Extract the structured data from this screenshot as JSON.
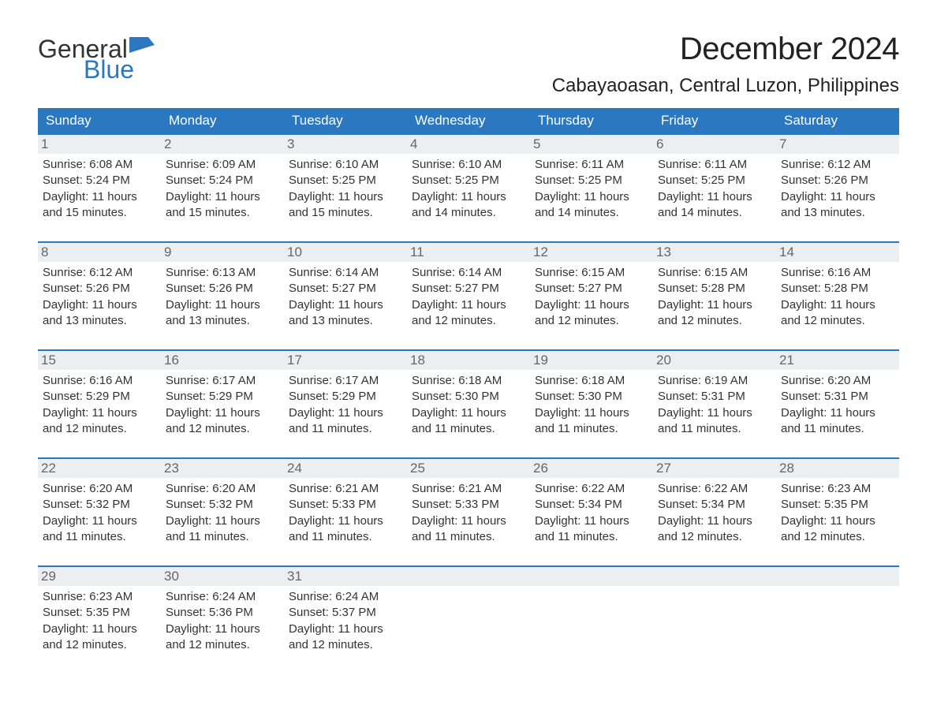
{
  "brand": {
    "word1": "General",
    "word2": "Blue",
    "flag_color": "#2b77c0",
    "text_gray": "#333333"
  },
  "title": "December 2024",
  "location": "Cabayaoasan, Central Luzon, Philippines",
  "colors": {
    "header_bg": "#2b77c0",
    "header_text": "#ffffff",
    "row_border": "#2b77c0",
    "daynum_bg": "#eceff1",
    "daynum_text": "#666666",
    "body_text": "#333333",
    "background": "#ffffff"
  },
  "fonts": {
    "title_size": 40,
    "location_size": 24,
    "dow_size": 17,
    "daynum_size": 17,
    "body_size": 15
  },
  "days_of_week": [
    "Sunday",
    "Monday",
    "Tuesday",
    "Wednesday",
    "Thursday",
    "Friday",
    "Saturday"
  ],
  "weeks": [
    [
      {
        "n": "1",
        "sr": "Sunrise: 6:08 AM",
        "ss": "Sunset: 5:24 PM",
        "d1": "Daylight: 11 hours",
        "d2": "and 15 minutes."
      },
      {
        "n": "2",
        "sr": "Sunrise: 6:09 AM",
        "ss": "Sunset: 5:24 PM",
        "d1": "Daylight: 11 hours",
        "d2": "and 15 minutes."
      },
      {
        "n": "3",
        "sr": "Sunrise: 6:10 AM",
        "ss": "Sunset: 5:25 PM",
        "d1": "Daylight: 11 hours",
        "d2": "and 15 minutes."
      },
      {
        "n": "4",
        "sr": "Sunrise: 6:10 AM",
        "ss": "Sunset: 5:25 PM",
        "d1": "Daylight: 11 hours",
        "d2": "and 14 minutes."
      },
      {
        "n": "5",
        "sr": "Sunrise: 6:11 AM",
        "ss": "Sunset: 5:25 PM",
        "d1": "Daylight: 11 hours",
        "d2": "and 14 minutes."
      },
      {
        "n": "6",
        "sr": "Sunrise: 6:11 AM",
        "ss": "Sunset: 5:25 PM",
        "d1": "Daylight: 11 hours",
        "d2": "and 14 minutes."
      },
      {
        "n": "7",
        "sr": "Sunrise: 6:12 AM",
        "ss": "Sunset: 5:26 PM",
        "d1": "Daylight: 11 hours",
        "d2": "and 13 minutes."
      }
    ],
    [
      {
        "n": "8",
        "sr": "Sunrise: 6:12 AM",
        "ss": "Sunset: 5:26 PM",
        "d1": "Daylight: 11 hours",
        "d2": "and 13 minutes."
      },
      {
        "n": "9",
        "sr": "Sunrise: 6:13 AM",
        "ss": "Sunset: 5:26 PM",
        "d1": "Daylight: 11 hours",
        "d2": "and 13 minutes."
      },
      {
        "n": "10",
        "sr": "Sunrise: 6:14 AM",
        "ss": "Sunset: 5:27 PM",
        "d1": "Daylight: 11 hours",
        "d2": "and 13 minutes."
      },
      {
        "n": "11",
        "sr": "Sunrise: 6:14 AM",
        "ss": "Sunset: 5:27 PM",
        "d1": "Daylight: 11 hours",
        "d2": "and 12 minutes."
      },
      {
        "n": "12",
        "sr": "Sunrise: 6:15 AM",
        "ss": "Sunset: 5:27 PM",
        "d1": "Daylight: 11 hours",
        "d2": "and 12 minutes."
      },
      {
        "n": "13",
        "sr": "Sunrise: 6:15 AM",
        "ss": "Sunset: 5:28 PM",
        "d1": "Daylight: 11 hours",
        "d2": "and 12 minutes."
      },
      {
        "n": "14",
        "sr": "Sunrise: 6:16 AM",
        "ss": "Sunset: 5:28 PM",
        "d1": "Daylight: 11 hours",
        "d2": "and 12 minutes."
      }
    ],
    [
      {
        "n": "15",
        "sr": "Sunrise: 6:16 AM",
        "ss": "Sunset: 5:29 PM",
        "d1": "Daylight: 11 hours",
        "d2": "and 12 minutes."
      },
      {
        "n": "16",
        "sr": "Sunrise: 6:17 AM",
        "ss": "Sunset: 5:29 PM",
        "d1": "Daylight: 11 hours",
        "d2": "and 12 minutes."
      },
      {
        "n": "17",
        "sr": "Sunrise: 6:17 AM",
        "ss": "Sunset: 5:29 PM",
        "d1": "Daylight: 11 hours",
        "d2": "and 11 minutes."
      },
      {
        "n": "18",
        "sr": "Sunrise: 6:18 AM",
        "ss": "Sunset: 5:30 PM",
        "d1": "Daylight: 11 hours",
        "d2": "and 11 minutes."
      },
      {
        "n": "19",
        "sr": "Sunrise: 6:18 AM",
        "ss": "Sunset: 5:30 PM",
        "d1": "Daylight: 11 hours",
        "d2": "and 11 minutes."
      },
      {
        "n": "20",
        "sr": "Sunrise: 6:19 AM",
        "ss": "Sunset: 5:31 PM",
        "d1": "Daylight: 11 hours",
        "d2": "and 11 minutes."
      },
      {
        "n": "21",
        "sr": "Sunrise: 6:20 AM",
        "ss": "Sunset: 5:31 PM",
        "d1": "Daylight: 11 hours",
        "d2": "and 11 minutes."
      }
    ],
    [
      {
        "n": "22",
        "sr": "Sunrise: 6:20 AM",
        "ss": "Sunset: 5:32 PM",
        "d1": "Daylight: 11 hours",
        "d2": "and 11 minutes."
      },
      {
        "n": "23",
        "sr": "Sunrise: 6:20 AM",
        "ss": "Sunset: 5:32 PM",
        "d1": "Daylight: 11 hours",
        "d2": "and 11 minutes."
      },
      {
        "n": "24",
        "sr": "Sunrise: 6:21 AM",
        "ss": "Sunset: 5:33 PM",
        "d1": "Daylight: 11 hours",
        "d2": "and 11 minutes."
      },
      {
        "n": "25",
        "sr": "Sunrise: 6:21 AM",
        "ss": "Sunset: 5:33 PM",
        "d1": "Daylight: 11 hours",
        "d2": "and 11 minutes."
      },
      {
        "n": "26",
        "sr": "Sunrise: 6:22 AM",
        "ss": "Sunset: 5:34 PM",
        "d1": "Daylight: 11 hours",
        "d2": "and 11 minutes."
      },
      {
        "n": "27",
        "sr": "Sunrise: 6:22 AM",
        "ss": "Sunset: 5:34 PM",
        "d1": "Daylight: 11 hours",
        "d2": "and 12 minutes."
      },
      {
        "n": "28",
        "sr": "Sunrise: 6:23 AM",
        "ss": "Sunset: 5:35 PM",
        "d1": "Daylight: 11 hours",
        "d2": "and 12 minutes."
      }
    ],
    [
      {
        "n": "29",
        "sr": "Sunrise: 6:23 AM",
        "ss": "Sunset: 5:35 PM",
        "d1": "Daylight: 11 hours",
        "d2": "and 12 minutes."
      },
      {
        "n": "30",
        "sr": "Sunrise: 6:24 AM",
        "ss": "Sunset: 5:36 PM",
        "d1": "Daylight: 11 hours",
        "d2": "and 12 minutes."
      },
      {
        "n": "31",
        "sr": "Sunrise: 6:24 AM",
        "ss": "Sunset: 5:37 PM",
        "d1": "Daylight: 11 hours",
        "d2": "and 12 minutes."
      },
      null,
      null,
      null,
      null
    ]
  ]
}
